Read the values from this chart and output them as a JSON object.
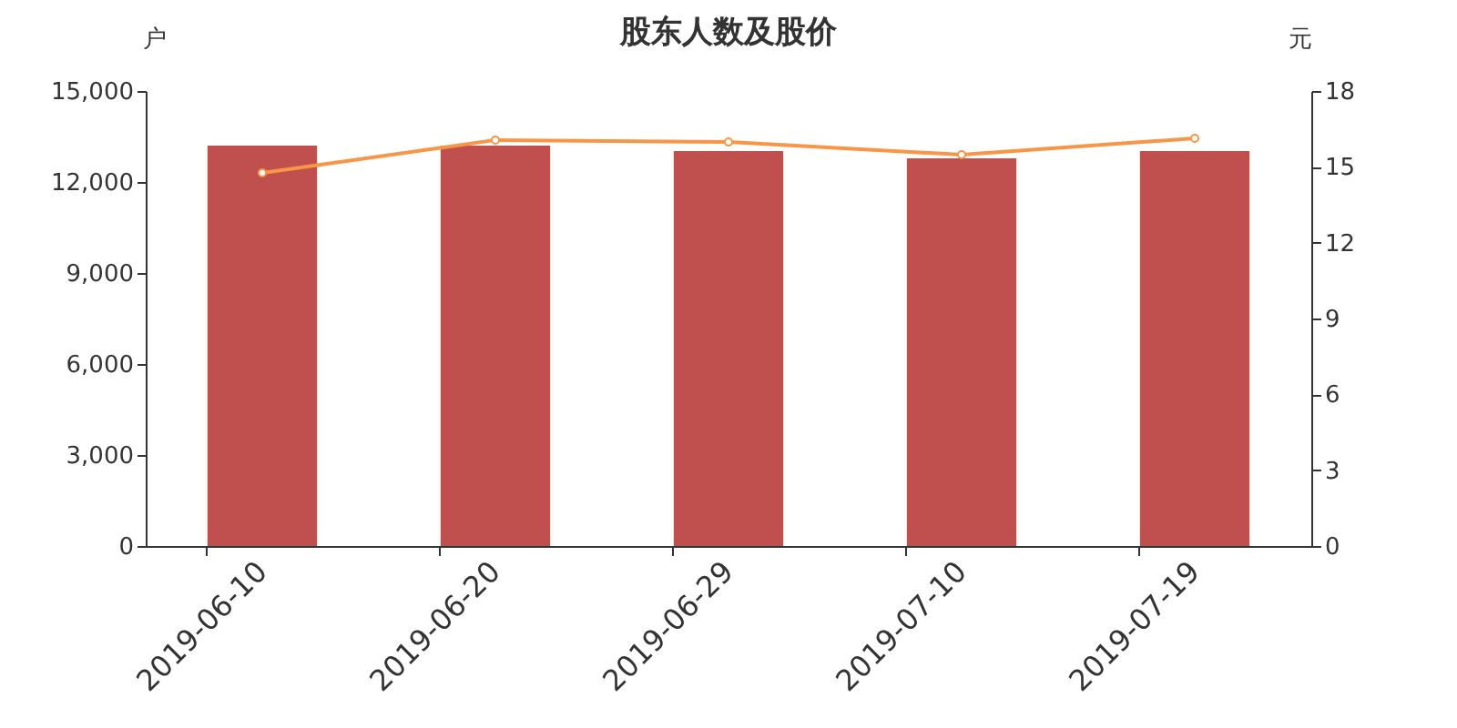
{
  "chart_data": {
    "type": "bar",
    "title": "股东人数及股价",
    "ylabel": "户",
    "y2label": "元",
    "categories": [
      "2019-06-10",
      "2019-06-20",
      "2019-06-29",
      "2019-07-10",
      "2019-07-19"
    ],
    "series": [
      {
        "color": "#c0504d",
        "values": [
          13200,
          13200,
          13020,
          12780,
          13020
        ]
      },
      {
        "type": "line",
        "axis": "y2",
        "color": "#f79646",
        "marker": "circle",
        "values": [
          14.76,
          16.06,
          15.98,
          15.48,
          16.13
        ]
      }
    ],
    "ylim": [
      0,
      15000
    ],
    "yticks": [
      {
        "value": 0,
        "label": "0"
      },
      {
        "value": 3000,
        "label": "3,000"
      },
      {
        "value": 6000,
        "label": "6,000"
      },
      {
        "value": 9000,
        "label": "9,000"
      },
      {
        "value": 12000,
        "label": "12,000"
      },
      {
        "value": 15000,
        "label": "15,000"
      }
    ],
    "y2lim": [
      0,
      18
    ],
    "y2ticks": [
      0,
      3,
      6,
      9,
      12,
      15,
      18
    ],
    "grid": false
  }
}
